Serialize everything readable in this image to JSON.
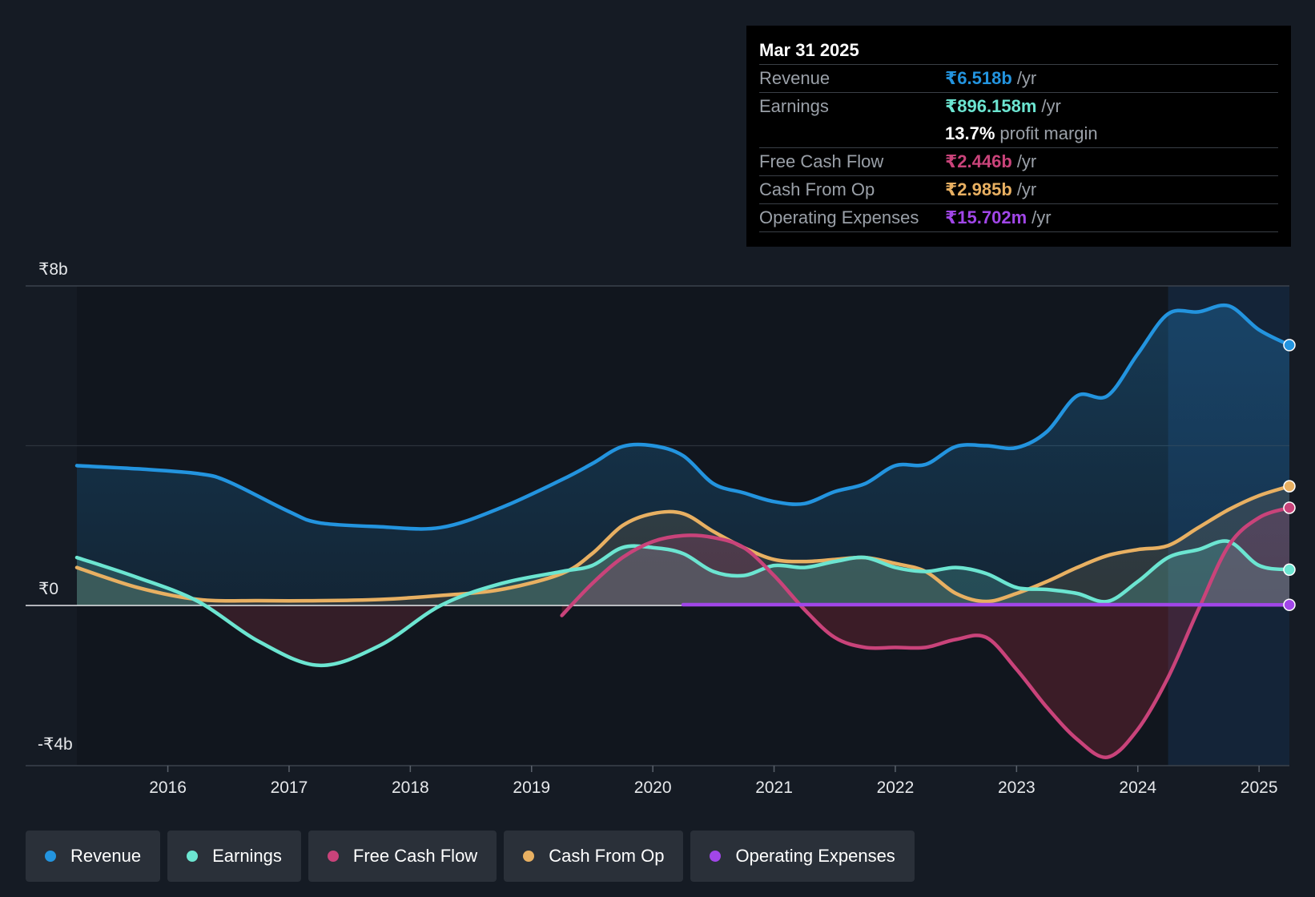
{
  "tooltip": {
    "date": "Mar 31 2025",
    "rows": [
      {
        "label": "Revenue",
        "value": "₹6.518b",
        "unit": "/yr",
        "color": "#2394df"
      },
      {
        "label": "Earnings",
        "value": "₹896.158m",
        "unit": "/yr",
        "color": "#6ce5d1"
      },
      {
        "label": "",
        "value": "13.7%",
        "unit": "profit margin",
        "color": "#ffffff"
      },
      {
        "label": "Free Cash Flow",
        "value": "₹2.446b",
        "unit": "/yr",
        "color": "#c9437a"
      },
      {
        "label": "Cash From Op",
        "value": "₹2.985b",
        "unit": "/yr",
        "color": "#e8b062"
      },
      {
        "label": "Operating Expenses",
        "value": "₹15.702m",
        "unit": "/yr",
        "color": "#a146e8"
      }
    ]
  },
  "legend": [
    {
      "label": "Revenue",
      "color": "#2394df",
      "icon": "dot-icon"
    },
    {
      "label": "Earnings",
      "color": "#6ce5d1",
      "icon": "dot-icon"
    },
    {
      "label": "Free Cash Flow",
      "color": "#c9437a",
      "icon": "dot-icon"
    },
    {
      "label": "Cash From Op",
      "color": "#e8b062",
      "icon": "dot-icon"
    },
    {
      "label": "Operating Expenses",
      "color": "#a146e8",
      "icon": "dot-icon"
    }
  ],
  "chart_data": {
    "type": "area",
    "title": "",
    "xlabel": "",
    "ylabel": "",
    "y_tick_labels": [
      {
        "value": 8,
        "label": "₹8b"
      },
      {
        "value": 0,
        "label": "₹0"
      },
      {
        "value": -4,
        "label": "-₹4b"
      }
    ],
    "ylim": [
      -4,
      8
    ],
    "xlim": [
      2015.25,
      2025.25
    ],
    "x_tick_labels": [
      "2016",
      "2017",
      "2018",
      "2019",
      "2020",
      "2021",
      "2022",
      "2023",
      "2024",
      "2025"
    ],
    "x_ticks": [
      2016,
      2017,
      2018,
      2019,
      2020,
      2021,
      2022,
      2023,
      2024,
      2025
    ],
    "highlight_start": 2024.25,
    "series": [
      {
        "name": "Revenue",
        "color": "#2394df",
        "x": [
          2015.25,
          2015.75,
          2016.25,
          2016.5,
          2017.0,
          2017.25,
          2017.75,
          2018.25,
          2018.75,
          2019.25,
          2019.5,
          2019.75,
          2020.0,
          2020.25,
          2020.5,
          2020.75,
          2021.0,
          2021.25,
          2021.5,
          2021.75,
          2022.0,
          2022.25,
          2022.5,
          2022.75,
          2023.0,
          2023.25,
          2023.5,
          2023.75,
          2024.0,
          2024.25,
          2024.5,
          2024.75,
          2025.0,
          2025.25
        ],
        "y": [
          3.5,
          3.42,
          3.3,
          3.1,
          2.35,
          2.07,
          1.97,
          1.95,
          2.45,
          3.15,
          3.55,
          3.98,
          4.0,
          3.75,
          3.05,
          2.82,
          2.6,
          2.55,
          2.85,
          3.05,
          3.5,
          3.53,
          3.98,
          4.0,
          3.95,
          4.35,
          5.25,
          5.25,
          6.3,
          7.3,
          7.35,
          7.5,
          6.9,
          6.518
        ]
      },
      {
        "name": "Earnings",
        "color": "#6ce5d1",
        "x": [
          2015.25,
          2015.75,
          2016.25,
          2016.75,
          2017.25,
          2017.75,
          2018.25,
          2018.75,
          2019.25,
          2019.5,
          2019.75,
          2020.0,
          2020.25,
          2020.5,
          2020.75,
          2021.0,
          2021.25,
          2021.5,
          2021.75,
          2022.0,
          2022.25,
          2022.5,
          2022.75,
          2023.0,
          2023.25,
          2023.5,
          2023.75,
          2024.0,
          2024.25,
          2024.5,
          2024.75,
          2025.0,
          2025.25
        ],
        "y": [
          1.2,
          0.7,
          0.1,
          -0.9,
          -1.5,
          -1.0,
          0.0,
          0.55,
          0.85,
          1.0,
          1.45,
          1.45,
          1.3,
          0.85,
          0.75,
          1.0,
          0.95,
          1.1,
          1.2,
          0.95,
          0.85,
          0.95,
          0.8,
          0.45,
          0.4,
          0.3,
          0.1,
          0.6,
          1.2,
          1.4,
          1.6,
          1.0,
          0.896
        ]
      },
      {
        "name": "Free Cash Flow",
        "color": "#c9437a",
        "x": [
          2019.25,
          2019.5,
          2019.75,
          2020.0,
          2020.25,
          2020.5,
          2020.75,
          2021.0,
          2021.25,
          2021.5,
          2021.75,
          2022.0,
          2022.25,
          2022.5,
          2022.75,
          2023.0,
          2023.25,
          2023.5,
          2023.75,
          2024.0,
          2024.25,
          2024.5,
          2024.75,
          2025.0,
          2025.25
        ],
        "y": [
          -0.25,
          0.55,
          1.2,
          1.6,
          1.75,
          1.7,
          1.45,
          0.75,
          -0.1,
          -0.8,
          -1.05,
          -1.05,
          -1.05,
          -0.85,
          -0.8,
          -1.6,
          -2.55,
          -3.35,
          -3.8,
          -3.1,
          -1.8,
          -0.1,
          1.5,
          2.2,
          2.446
        ]
      },
      {
        "name": "Cash From Op",
        "color": "#e8b062",
        "x": [
          2015.25,
          2015.75,
          2016.25,
          2016.75,
          2017.25,
          2017.75,
          2018.25,
          2018.75,
          2019.25,
          2019.5,
          2019.75,
          2020.0,
          2020.25,
          2020.5,
          2020.75,
          2021.0,
          2021.25,
          2021.5,
          2021.75,
          2022.0,
          2022.25,
          2022.5,
          2022.75,
          2023.0,
          2023.25,
          2023.5,
          2023.75,
          2024.0,
          2024.25,
          2024.5,
          2024.75,
          2025.0,
          2025.25
        ],
        "y": [
          0.95,
          0.45,
          0.15,
          0.12,
          0.12,
          0.15,
          0.25,
          0.4,
          0.8,
          1.3,
          2.0,
          2.3,
          2.3,
          1.85,
          1.45,
          1.15,
          1.1,
          1.15,
          1.2,
          1.05,
          0.85,
          0.3,
          0.1,
          0.3,
          0.6,
          0.95,
          1.25,
          1.4,
          1.5,
          1.95,
          2.4,
          2.75,
          2.985
        ]
      },
      {
        "name": "Operating Expenses",
        "color": "#a146e8",
        "x": [
          2020.25,
          2021.0,
          2022.0,
          2023.0,
          2024.0,
          2025.25
        ],
        "y": [
          0.02,
          0.02,
          0.02,
          0.02,
          0.02,
          0.016
        ]
      }
    ]
  }
}
